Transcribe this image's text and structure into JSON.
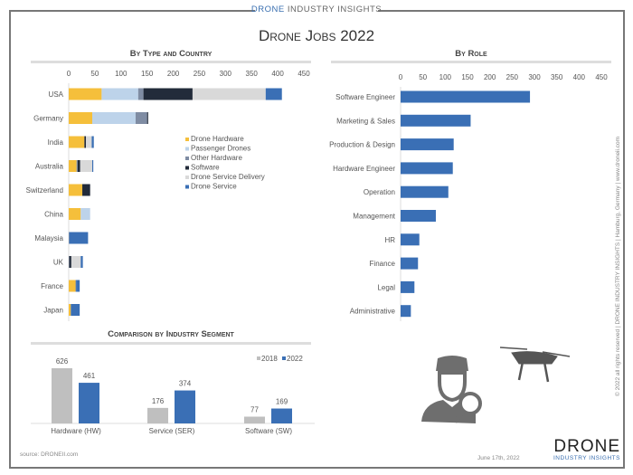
{
  "header": {
    "brand_strong": "DRONE",
    "brand_rest": " INDUSTRY INSIGHTS",
    "title": "Drone Jobs 2022"
  },
  "footer": {
    "source": "source: DRONEII.com",
    "date": "June 17th, 2022",
    "logo_main": "DRONE",
    "logo_sub": "INDUSTRY INSIGHTS",
    "vertical": "© 2022 all rights reserved  |  DRONE INDUSTRY INSIGHTS  |  Hamburg, Germany  |  www.droneii.com"
  },
  "colors": {
    "Drone Hardware": "#f5bf3b",
    "Passenger Drones": "#bdd3ea",
    "Other Hardware": "#7f8ca3",
    "Software": "#222b3a",
    "Drone Service Delivery": "#d9d9d9",
    "Drone Service": "#3a6fb5",
    "2018": "#bfbfbf",
    "2022": "#3a6fb5"
  },
  "chart_data": [
    {
      "type": "bar",
      "orientation": "horizontal",
      "stacked": true,
      "title": "By Type and Country",
      "xlim": [
        0,
        450
      ],
      "xticks": [
        0,
        50,
        100,
        150,
        200,
        250,
        300,
        350,
        400,
        450
      ],
      "legend": "center-right",
      "categories": [
        "USA",
        "Germany",
        "India",
        "Australia",
        "Switzerland",
        "China",
        "Malaysia",
        "UK",
        "France",
        "Japan"
      ],
      "series": [
        {
          "name": "Drone Hardware",
          "values": [
            63,
            45,
            30,
            15,
            26,
            23,
            0,
            0,
            13,
            4
          ]
        },
        {
          "name": "Passenger Drones",
          "values": [
            70,
            83,
            0,
            0,
            0,
            18,
            0,
            0,
            0,
            0
          ]
        },
        {
          "name": "Other Hardware",
          "values": [
            10,
            22,
            0,
            2,
            0,
            0,
            1,
            1,
            1,
            0
          ]
        },
        {
          "name": "Software",
          "values": [
            94,
            2,
            3,
            5,
            15,
            0,
            0,
            4,
            0,
            0
          ]
        },
        {
          "name": "Drone Service Delivery",
          "values": [
            140,
            0,
            11,
            23,
            0,
            0,
            0,
            18,
            0,
            0
          ]
        },
        {
          "name": "Drone Service",
          "values": [
            31,
            0,
            4,
            2,
            0,
            0,
            36,
            4,
            7,
            17
          ]
        }
      ]
    },
    {
      "type": "bar",
      "orientation": "horizontal",
      "title": "By Role",
      "xlim": [
        0,
        450
      ],
      "xticks": [
        0,
        50,
        100,
        150,
        200,
        250,
        300,
        350,
        400,
        450
      ],
      "categories": [
        "Software Engineer",
        "Marketing & Sales",
        "Production & Design",
        "Hardware Engineer",
        "Operation",
        "Management",
        "HR",
        "Finance",
        "Legal",
        "Administrative"
      ],
      "values": [
        290,
        157,
        119,
        117,
        107,
        79,
        42,
        39,
        31,
        23
      ]
    },
    {
      "type": "bar",
      "title": "Comparison by Industry Segment",
      "legend": "top-right",
      "categories": [
        "Hardware (HW)",
        "Service (SER)",
        "Software (SW)"
      ],
      "series": [
        {
          "name": "2018",
          "values": [
            626,
            176,
            77
          ]
        },
        {
          "name": "2022",
          "values": [
            461,
            374,
            169
          ]
        }
      ]
    }
  ]
}
